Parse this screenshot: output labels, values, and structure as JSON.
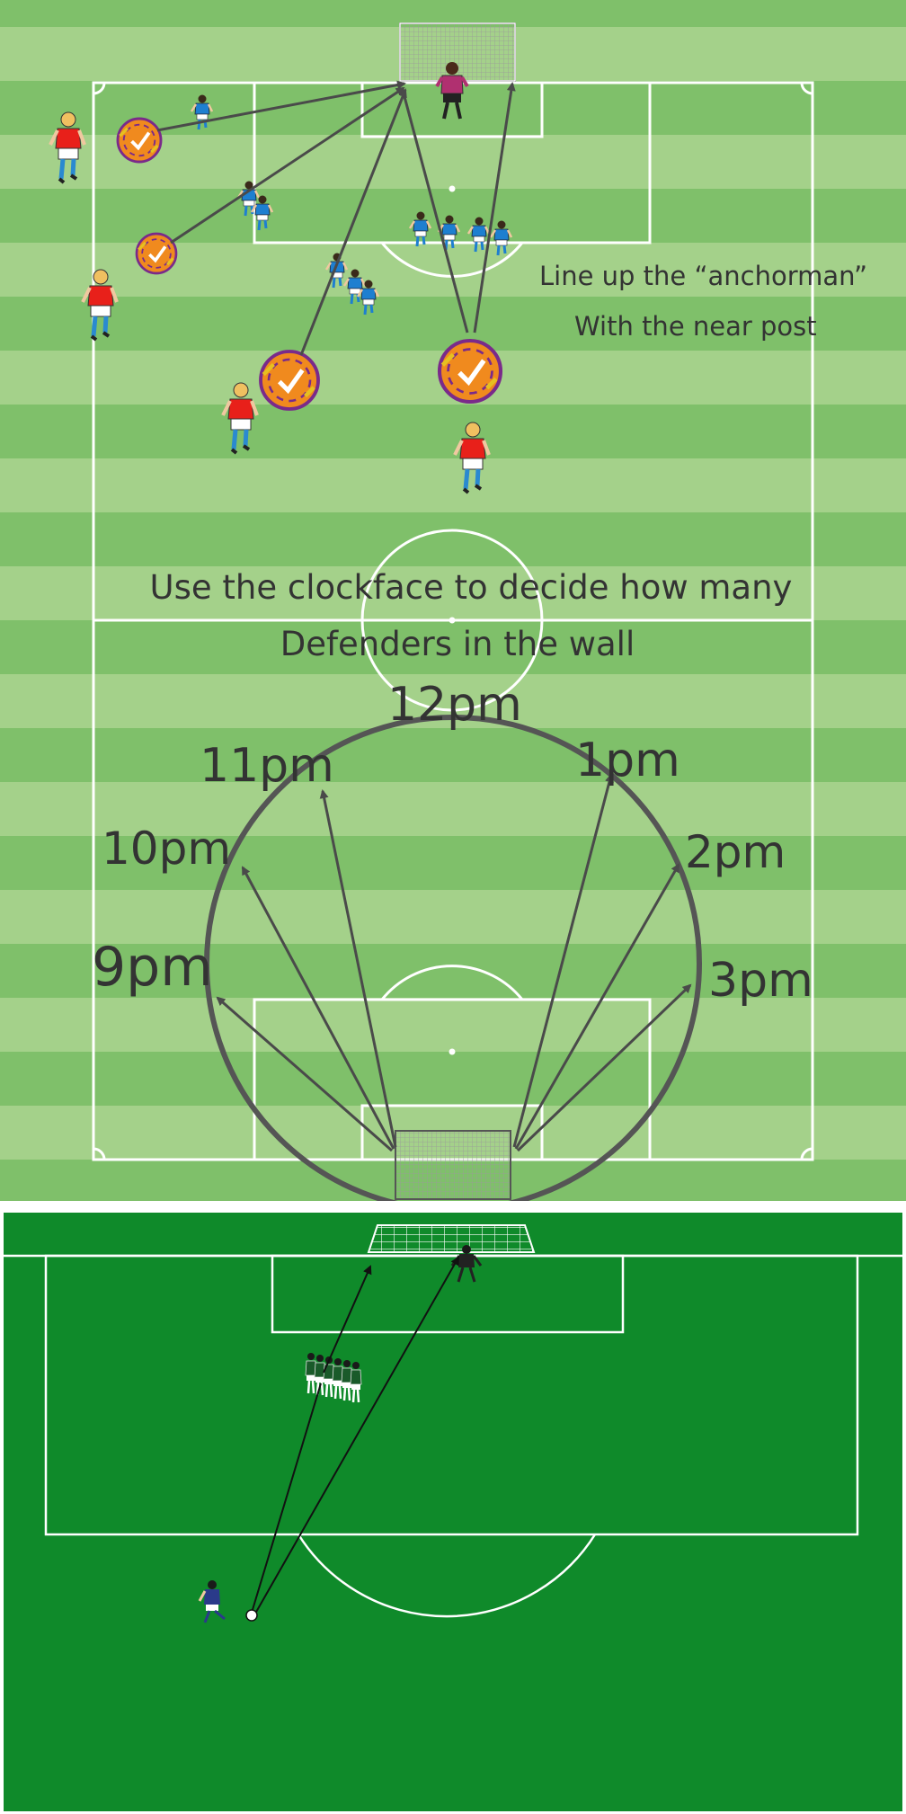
{
  "top_diagram": {
    "annotations": {
      "anchorman_line1": "Line up the “anchorman”",
      "anchorman_line2": "With the near post",
      "clockface_line1": "Use the clockface to decide how many",
      "clockface_line2": "Defenders in the wall"
    },
    "clock_labels": {
      "12": "12pm",
      "11": "11pm",
      "1": "1pm",
      "10": "10pm",
      "2": "2pm",
      "9": "9pm",
      "3": "3pm"
    },
    "colors": {
      "pitch_light": "#a4d18a",
      "pitch_dark": "#7fc06a",
      "attacker_shirt": "#e8201a",
      "defender_shirt": "#1e7fd0",
      "goalkeeper_shirt": "#b03070",
      "ball_main": "#f08a1e",
      "ball_accent": "#7a2a8a",
      "arrow": "#4a4a4a",
      "clock_circle": "#555555"
    }
  },
  "bottom_diagram": {
    "colors": {
      "pitch": "#0f8a2a",
      "lines": "#ffffff",
      "arrow": "#111111",
      "kicker_shirt": "#2a3a8a",
      "wall_shirt": "#1a5a2a",
      "goalkeeper_shirt": "#222222"
    }
  }
}
